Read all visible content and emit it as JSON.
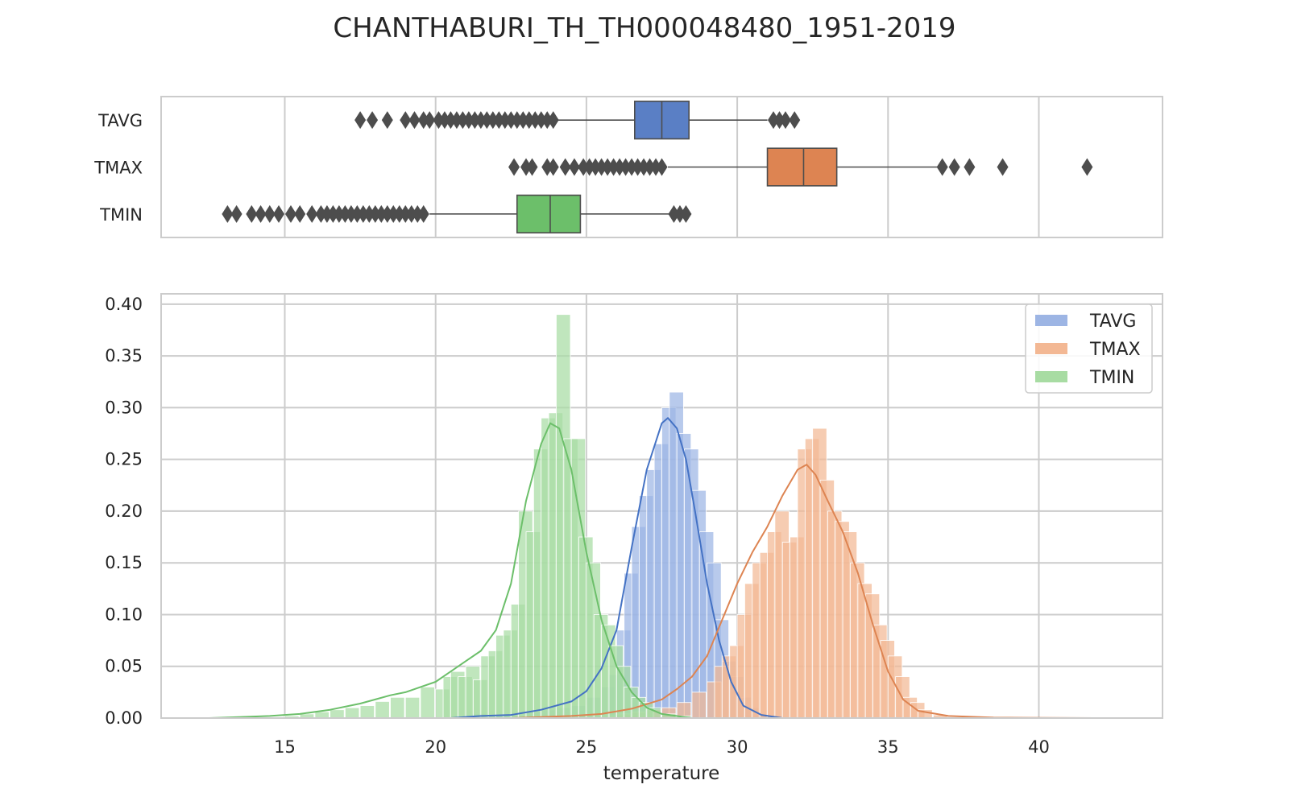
{
  "chart_data": {
    "type": "bar",
    "title": "CHANTHABURI_TH_TH000048480_1951-2019",
    "xlabel": "temperature",
    "ylabel": "",
    "xlim": [
      10.9,
      44.1
    ],
    "ylim": [
      0,
      0.41
    ],
    "grid": true,
    "legend_position": "top-right",
    "x_ticks": [
      "15",
      "20",
      "25",
      "30",
      "35",
      "40"
    ],
    "y_ticks": [
      "0.00",
      "0.05",
      "0.10",
      "0.15",
      "0.20",
      "0.25",
      "0.30",
      "0.35",
      "0.40"
    ],
    "boxplot": {
      "categories": [
        "TAVG",
        "TMAX",
        "TMIN"
      ],
      "series": [
        {
          "name": "TAVG",
          "color": "#5a7fc5",
          "q1": 26.6,
          "median": 27.5,
          "q3": 28.4,
          "whisker_low": 24.0,
          "whisker_high": 31.0,
          "outliers": [
            17.5,
            17.9,
            18.4,
            19.0,
            19.3,
            19.6,
            19.8,
            20.1,
            20.3,
            20.5,
            20.7,
            20.9,
            21.1,
            21.3,
            21.5,
            21.7,
            21.9,
            22.1,
            22.3,
            22.5,
            22.7,
            22.9,
            23.1,
            23.3,
            23.5,
            23.7,
            23.9,
            31.2,
            31.4,
            31.6,
            31.9
          ]
        },
        {
          "name": "TMAX",
          "color": "#dd8452",
          "q1": 31.0,
          "median": 32.2,
          "q3": 33.3,
          "whisker_low": 27.7,
          "whisker_high": 36.7,
          "outliers": [
            22.6,
            23.0,
            23.2,
            23.7,
            23.9,
            24.3,
            24.6,
            24.9,
            25.1,
            25.3,
            25.5,
            25.7,
            25.9,
            26.1,
            26.3,
            26.5,
            26.7,
            26.9,
            27.1,
            27.3,
            27.5,
            36.8,
            37.2,
            37.7,
            38.8,
            41.6
          ]
        },
        {
          "name": "TMIN",
          "color": "#6cbf6a",
          "q1": 22.7,
          "median": 23.8,
          "q3": 24.8,
          "whisker_low": 19.8,
          "whisker_high": 27.8,
          "outliers": [
            13.1,
            13.4,
            13.9,
            14.2,
            14.5,
            14.8,
            15.2,
            15.5,
            15.9,
            16.2,
            16.4,
            16.6,
            16.8,
            17.0,
            17.2,
            17.4,
            17.6,
            17.8,
            18.0,
            18.2,
            18.4,
            18.6,
            18.8,
            19.0,
            19.2,
            19.4,
            19.6,
            27.9,
            28.1,
            28.3
          ]
        }
      ]
    },
    "histogram": {
      "bin_width": 0.5,
      "series": [
        {
          "name": "TAVG",
          "bar_color": "#9db5e4",
          "line_color": "#4472c4",
          "bins": [
            [
              21.2,
              0.004
            ],
            [
              22.0,
              0.002
            ],
            [
              22.5,
              0.002
            ],
            [
              23.0,
              0.006
            ],
            [
              23.5,
              0.008
            ],
            [
              24.0,
              0.01
            ],
            [
              24.5,
              0.012
            ],
            [
              25.0,
              0.02
            ],
            [
              25.5,
              0.03
            ],
            [
              25.75,
              0.042
            ],
            [
              26.0,
              0.085
            ],
            [
              26.25,
              0.14
            ],
            [
              26.5,
              0.185
            ],
            [
              26.75,
              0.215
            ],
            [
              27.0,
              0.24
            ],
            [
              27.25,
              0.265
            ],
            [
              27.5,
              0.3
            ],
            [
              27.75,
              0.315
            ],
            [
              28.0,
              0.275
            ],
            [
              28.25,
              0.26
            ],
            [
              28.5,
              0.22
            ],
            [
              28.75,
              0.18
            ],
            [
              29.0,
              0.15
            ],
            [
              29.25,
              0.095
            ],
            [
              29.5,
              0.055
            ],
            [
              29.75,
              0.04
            ],
            [
              30.0,
              0.02
            ],
            [
              30.25,
              0.01
            ],
            [
              30.5,
              0.004
            ],
            [
              31.0,
              0.002
            ]
          ],
          "kde": [
            [
              20.5,
              0.0
            ],
            [
              21.5,
              0.002
            ],
            [
              22.5,
              0.003
            ],
            [
              23.5,
              0.008
            ],
            [
              24.5,
              0.016
            ],
            [
              25.0,
              0.026
            ],
            [
              25.5,
              0.048
            ],
            [
              26.0,
              0.085
            ],
            [
              26.5,
              0.165
            ],
            [
              27.0,
              0.24
            ],
            [
              27.5,
              0.285
            ],
            [
              27.7,
              0.29
            ],
            [
              28.0,
              0.28
            ],
            [
              28.3,
              0.25
            ],
            [
              28.6,
              0.2
            ],
            [
              29.0,
              0.13
            ],
            [
              29.4,
              0.075
            ],
            [
              29.8,
              0.035
            ],
            [
              30.2,
              0.012
            ],
            [
              30.8,
              0.003
            ],
            [
              31.5,
              0.0
            ]
          ]
        },
        {
          "name": "TMAX",
          "bar_color": "#f3b894",
          "line_color": "#dd8452",
          "bins": [
            [
              25.5,
              0.002
            ],
            [
              26.0,
              0.004
            ],
            [
              26.5,
              0.006
            ],
            [
              27.0,
              0.008
            ],
            [
              27.5,
              0.01
            ],
            [
              28.0,
              0.015
            ],
            [
              28.5,
              0.025
            ],
            [
              29.0,
              0.035
            ],
            [
              29.25,
              0.05
            ],
            [
              29.5,
              0.06
            ],
            [
              29.75,
              0.07
            ],
            [
              30.0,
              0.1
            ],
            [
              30.25,
              0.13
            ],
            [
              30.5,
              0.15
            ],
            [
              30.75,
              0.16
            ],
            [
              31.0,
              0.18
            ],
            [
              31.25,
              0.2
            ],
            [
              31.5,
              0.17
            ],
            [
              31.75,
              0.175
            ],
            [
              32.0,
              0.26
            ],
            [
              32.25,
              0.27
            ],
            [
              32.5,
              0.28
            ],
            [
              32.75,
              0.23
            ],
            [
              33.0,
              0.2
            ],
            [
              33.25,
              0.19
            ],
            [
              33.5,
              0.18
            ],
            [
              33.75,
              0.15
            ],
            [
              34.0,
              0.13
            ],
            [
              34.25,
              0.12
            ],
            [
              34.5,
              0.09
            ],
            [
              34.75,
              0.075
            ],
            [
              35.0,
              0.06
            ],
            [
              35.25,
              0.04
            ],
            [
              35.5,
              0.02
            ],
            [
              35.75,
              0.015
            ],
            [
              36.0,
              0.008
            ],
            [
              36.5,
              0.003
            ],
            [
              37.0,
              0.001
            ]
          ],
          "kde": [
            [
              22.5,
              0.0
            ],
            [
              24.5,
              0.002
            ],
            [
              25.5,
              0.004
            ],
            [
              26.5,
              0.009
            ],
            [
              27.5,
              0.018
            ],
            [
              28.0,
              0.028
            ],
            [
              28.5,
              0.04
            ],
            [
              29.0,
              0.06
            ],
            [
              29.5,
              0.095
            ],
            [
              30.0,
              0.13
            ],
            [
              30.5,
              0.16
            ],
            [
              31.0,
              0.185
            ],
            [
              31.5,
              0.215
            ],
            [
              32.0,
              0.24
            ],
            [
              32.3,
              0.245
            ],
            [
              32.6,
              0.235
            ],
            [
              33.0,
              0.21
            ],
            [
              33.5,
              0.18
            ],
            [
              34.0,
              0.14
            ],
            [
              34.5,
              0.09
            ],
            [
              35.0,
              0.045
            ],
            [
              35.5,
              0.018
            ],
            [
              36.0,
              0.007
            ],
            [
              37.0,
              0.002
            ],
            [
              38.5,
              0.0005
            ],
            [
              41.8,
              0.0
            ]
          ]
        },
        {
          "name": "TMIN",
          "bar_color": "#a8dca3",
          "line_color": "#6cbf6a",
          "bins": [
            [
              15.0,
              0.002
            ],
            [
              15.5,
              0.004
            ],
            [
              16.0,
              0.006
            ],
            [
              16.5,
              0.008
            ],
            [
              17.0,
              0.01
            ],
            [
              17.5,
              0.012
            ],
            [
              18.0,
              0.016
            ],
            [
              18.5,
              0.02
            ],
            [
              19.0,
              0.02
            ],
            [
              19.5,
              0.03
            ],
            [
              20.0,
              0.028
            ],
            [
              20.25,
              0.04
            ],
            [
              20.5,
              0.045
            ],
            [
              20.75,
              0.04
            ],
            [
              21.0,
              0.05
            ],
            [
              21.25,
              0.037
            ],
            [
              21.5,
              0.06
            ],
            [
              21.75,
              0.065
            ],
            [
              22.0,
              0.08
            ],
            [
              22.25,
              0.085
            ],
            [
              22.5,
              0.11
            ],
            [
              22.75,
              0.2
            ],
            [
              23.0,
              0.18
            ],
            [
              23.25,
              0.26
            ],
            [
              23.5,
              0.29
            ],
            [
              23.75,
              0.295
            ],
            [
              24.0,
              0.39
            ],
            [
              24.25,
              0.27
            ],
            [
              24.5,
              0.27
            ],
            [
              24.75,
              0.175
            ],
            [
              25.0,
              0.15
            ],
            [
              25.25,
              0.1
            ],
            [
              25.5,
              0.09
            ],
            [
              25.75,
              0.07
            ],
            [
              26.0,
              0.05
            ],
            [
              26.25,
              0.03
            ],
            [
              26.5,
              0.02
            ],
            [
              26.75,
              0.015
            ],
            [
              27.0,
              0.01
            ],
            [
              27.5,
              0.004
            ],
            [
              28.0,
              0.002
            ]
          ],
          "kde": [
            [
              12.5,
              0.0
            ],
            [
              13.5,
              0.001
            ],
            [
              14.5,
              0.002
            ],
            [
              15.5,
              0.004
            ],
            [
              16.5,
              0.008
            ],
            [
              17.5,
              0.014
            ],
            [
              18.0,
              0.018
            ],
            [
              18.5,
              0.022
            ],
            [
              19.0,
              0.025
            ],
            [
              19.5,
              0.03
            ],
            [
              20.0,
              0.035
            ],
            [
              20.5,
              0.045
            ],
            [
              21.0,
              0.055
            ],
            [
              21.5,
              0.065
            ],
            [
              22.0,
              0.085
            ],
            [
              22.5,
              0.13
            ],
            [
              23.0,
              0.21
            ],
            [
              23.5,
              0.265
            ],
            [
              23.8,
              0.285
            ],
            [
              24.1,
              0.28
            ],
            [
              24.5,
              0.24
            ],
            [
              25.0,
              0.16
            ],
            [
              25.5,
              0.095
            ],
            [
              26.0,
              0.05
            ],
            [
              26.5,
              0.025
            ],
            [
              27.0,
              0.01
            ],
            [
              27.5,
              0.004
            ],
            [
              28.5,
              0.0
            ]
          ]
        }
      ]
    }
  }
}
